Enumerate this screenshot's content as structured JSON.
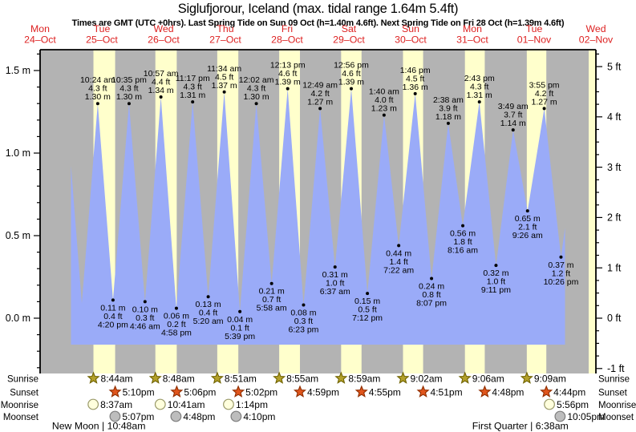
{
  "colors": {
    "night_band": "#b3b3b3",
    "daylight_band": "#ffffcc",
    "water": "#9aabf8",
    "axis": "#000000",
    "day_label": "#dd2222",
    "tide_label": "#000000",
    "sunrise_star_fill": "#b3a02a",
    "sunrise_star_stroke": "#6f6200",
    "sunset_star_fill": "#e0551c",
    "sunset_star_stroke": "#8f2e00",
    "moonrise_fill": "#ffffdd",
    "moonrise_stroke": "#9a9a6a",
    "moonset_fill": "#bdbdbd",
    "moonset_stroke": "#7d7d7d"
  },
  "chart_data": {
    "type": "area",
    "title": "Siglufjorour, Iceland (max. tidal range 1.64m 5.4ft)",
    "subtitle": "Times are GMT (UTC +0hrs). Last Spring Tide on Sun 09 Oct (h=1.40m 4.6ft). Next Spring Tide on Fri 28 Oct (h=1.39m 4.6ft)",
    "x_days": [
      {
        "dow": "Mon",
        "date": "24–Oct"
      },
      {
        "dow": "Tue",
        "date": "25–Oct"
      },
      {
        "dow": "Wed",
        "date": "26–Oct"
      },
      {
        "dow": "Thu",
        "date": "27–Oct"
      },
      {
        "dow": "Fri",
        "date": "28–Oct"
      },
      {
        "dow": "Sat",
        "date": "29–Oct"
      },
      {
        "dow": "Sun",
        "date": "30–Oct"
      },
      {
        "dow": "Mon",
        "date": "31–Oct"
      },
      {
        "dow": "Tue",
        "date": "01–Nov"
      },
      {
        "dow": "Wed",
        "date": "02–Nov"
      }
    ],
    "y_axis_left": {
      "unit": "m",
      "major_ticks": [
        {
          "text": "0.0 m",
          "value": 0.0
        },
        {
          "text": "0.5 m",
          "value": 0.5
        },
        {
          "text": "1.0 m",
          "value": 1.0
        },
        {
          "text": "1.5 m",
          "value": 1.5
        }
      ],
      "minor_step_m": 0.1
    },
    "y_axis_right": {
      "unit": "ft",
      "major_ticks": [
        {
          "text": "-1 ft",
          "value": -1
        },
        {
          "text": "0 ft",
          "value": 0
        },
        {
          "text": "1 ft",
          "value": 1
        },
        {
          "text": "2 ft",
          "value": 2
        },
        {
          "text": "3 ft",
          "value": 3
        },
        {
          "text": "4 ft",
          "value": 4
        },
        {
          "text": "5 ft",
          "value": 5
        }
      ],
      "minor_step_ft": 0.25
    },
    "layout": {
      "time_axis_start_hour": 12,
      "time_axis_end_hour": 228,
      "water_start_hour": 24,
      "water_end_hour": 216,
      "water_base_m": -0.16,
      "ylim_m": [
        -0.335,
        1.625
      ],
      "edge_daylight_band_start_hour": 225.2
    },
    "tide_extremes": [
      {
        "kind": "high",
        "hour": 22.1,
        "height_m": 1.3,
        "labeled": false
      },
      {
        "kind": "low",
        "hour": 28.2,
        "height_m": 0.09,
        "labeled": false
      },
      {
        "kind": "high",
        "hour": 34.4,
        "height_m": 1.3,
        "labeled": true,
        "time": "10:24 am",
        "ft": "4.3 ft",
        "m": "1.30 m"
      },
      {
        "kind": "low",
        "hour": 40.33,
        "height_m": 0.11,
        "labeled": true,
        "time": "4:20 pm",
        "ft": "0.4 ft",
        "m": "0.11 m"
      },
      {
        "kind": "high",
        "hour": 46.58,
        "height_m": 1.3,
        "labeled": true,
        "time": "10:35 pm",
        "ft": "4.3 ft",
        "m": "1.30 m"
      },
      {
        "kind": "low",
        "hour": 52.77,
        "height_m": 0.1,
        "labeled": true,
        "time": "4:46 am",
        "ft": "0.3 ft",
        "m": "0.10 m"
      },
      {
        "kind": "high",
        "hour": 58.95,
        "height_m": 1.34,
        "labeled": true,
        "time": "10:57 am",
        "ft": "4.4 ft",
        "m": "1.34 m"
      },
      {
        "kind": "low",
        "hour": 64.97,
        "height_m": 0.06,
        "labeled": true,
        "time": "4:58 pm",
        "ft": "0.2 ft",
        "m": "0.06 m"
      },
      {
        "kind": "high",
        "hour": 71.28,
        "height_m": 1.31,
        "labeled": true,
        "time": "11:17 pm",
        "ft": "4.3 ft",
        "m": "1.31 m"
      },
      {
        "kind": "low",
        "hour": 77.33,
        "height_m": 0.13,
        "labeled": true,
        "time": "5:20 am",
        "ft": "0.4 ft",
        "m": "0.13 m"
      },
      {
        "kind": "high",
        "hour": 83.57,
        "height_m": 1.37,
        "labeled": true,
        "time": "11:34 am",
        "ft": "4.5 ft",
        "m": "1.37 m"
      },
      {
        "kind": "low",
        "hour": 89.65,
        "height_m": 0.04,
        "labeled": true,
        "time": "5:39 pm",
        "ft": "0.1 ft",
        "m": "0.04 m"
      },
      {
        "kind": "high",
        "hour": 96.03,
        "height_m": 1.3,
        "labeled": true,
        "time": "12:02 am",
        "ft": "4.3 ft",
        "m": "1.30 m"
      },
      {
        "kind": "low",
        "hour": 101.97,
        "height_m": 0.21,
        "labeled": true,
        "time": "5:58 am",
        "ft": "0.7 ft",
        "m": "0.21 m"
      },
      {
        "kind": "high",
        "hour": 108.22,
        "height_m": 1.39,
        "labeled": true,
        "time": "12:13 pm",
        "ft": "4.6 ft",
        "m": "1.39 m"
      },
      {
        "kind": "low",
        "hour": 114.38,
        "height_m": 0.08,
        "labeled": true,
        "time": "6:23 pm",
        "ft": "0.3 ft",
        "m": "0.08 m"
      },
      {
        "kind": "high",
        "hour": 120.82,
        "height_m": 1.27,
        "labeled": true,
        "time": "12:49 am",
        "ft": "4.2 ft",
        "m": "1.27 m"
      },
      {
        "kind": "low",
        "hour": 126.62,
        "height_m": 0.31,
        "labeled": true,
        "time": "6:37 am",
        "ft": "1.0 ft",
        "m": "0.31 m"
      },
      {
        "kind": "high",
        "hour": 132.93,
        "height_m": 1.39,
        "labeled": true,
        "time": "12:56 pm",
        "ft": "4.6 ft",
        "m": "1.39 m"
      },
      {
        "kind": "low",
        "hour": 139.2,
        "height_m": 0.15,
        "labeled": true,
        "time": "7:12 pm",
        "ft": "0.5 ft",
        "m": "0.15 m"
      },
      {
        "kind": "high",
        "hour": 145.67,
        "height_m": 1.23,
        "labeled": true,
        "time": "1:40 am",
        "ft": "4.0 ft",
        "m": "1.23 m"
      },
      {
        "kind": "low",
        "hour": 151.37,
        "height_m": 0.44,
        "labeled": true,
        "time": "7:22 am",
        "ft": "1.4 ft",
        "m": "0.44 m"
      },
      {
        "kind": "high",
        "hour": 157.77,
        "height_m": 1.36,
        "labeled": true,
        "time": "1:46 pm",
        "ft": "4.5 ft",
        "m": "1.36 m"
      },
      {
        "kind": "low",
        "hour": 164.12,
        "height_m": 0.24,
        "labeled": true,
        "time": "8:07 pm",
        "ft": "0.8 ft",
        "m": "0.24 m"
      },
      {
        "kind": "high",
        "hour": 170.63,
        "height_m": 1.18,
        "labeled": true,
        "time": "2:38 am",
        "ft": "3.9 ft",
        "m": "1.18 m"
      },
      {
        "kind": "low",
        "hour": 176.27,
        "height_m": 0.56,
        "labeled": true,
        "time": "8:16 am",
        "ft": "1.8 ft",
        "m": "0.56 m"
      },
      {
        "kind": "high",
        "hour": 182.72,
        "height_m": 1.31,
        "labeled": true,
        "time": "2:43 pm",
        "ft": "4.3 ft",
        "m": "1.31 m"
      },
      {
        "kind": "low",
        "hour": 189.18,
        "height_m": 0.32,
        "labeled": true,
        "time": "9:11 pm",
        "ft": "1.0 ft",
        "m": "0.32 m"
      },
      {
        "kind": "high",
        "hour": 195.82,
        "height_m": 1.14,
        "labeled": true,
        "time": "3:49 am",
        "ft": "3.7 ft",
        "m": "1.14 m"
      },
      {
        "kind": "low",
        "hour": 201.43,
        "height_m": 0.65,
        "labeled": true,
        "time": "9:26 am",
        "ft": "2.1 ft",
        "m": "0.65 m"
      },
      {
        "kind": "high",
        "hour": 207.92,
        "height_m": 1.27,
        "labeled": true,
        "time": "3:55 pm",
        "ft": "4.2 ft",
        "m": "1.27 m"
      },
      {
        "kind": "low",
        "hour": 214.43,
        "height_m": 0.37,
        "labeled": true,
        "time": "10:26 pm",
        "ft": "1.2 ft",
        "m": "0.37 m"
      },
      {
        "kind": "high",
        "hour": 220.9,
        "height_m": 1.1,
        "labeled": false
      }
    ],
    "sun": [
      {
        "day": 1,
        "sunrise": "8:44am",
        "sunset": "5:10pm"
      },
      {
        "day": 2,
        "sunrise": "8:48am",
        "sunset": "5:06pm"
      },
      {
        "day": 3,
        "sunrise": "8:51am",
        "sunset": "5:02pm"
      },
      {
        "day": 4,
        "sunrise": "8:55am",
        "sunset": "4:59pm"
      },
      {
        "day": 5,
        "sunrise": "8:59am",
        "sunset": "4:55pm"
      },
      {
        "day": 6,
        "sunrise": "9:02am",
        "sunset": "4:51pm"
      },
      {
        "day": 7,
        "sunrise": "9:06am",
        "sunset": "4:48pm"
      },
      {
        "day": 8,
        "sunrise": "9:09am",
        "sunset": "4:44pm"
      }
    ],
    "moon": [
      {
        "day": 1,
        "moonrise": "8:37am",
        "moonset": "5:07pm"
      },
      {
        "day": 2,
        "moonrise": "10:41am",
        "moonset": "4:48pm"
      },
      {
        "day": 3,
        "moonrise": "1:14pm",
        "moonset": "4:10pm"
      },
      {
        "day": 8,
        "moonrise": "5:56pm",
        "moonset": "10:05pm"
      }
    ],
    "moon_phases": [
      {
        "text": "New Moon | 10:48am",
        "day": 1,
        "hour": 10.8
      },
      {
        "text": "First Quarter | 6:38am",
        "day": 8,
        "hour": 6.63
      }
    ],
    "row_labels": {
      "sunrise": "Sunrise",
      "sunset": "Sunset",
      "moonrise": "Moonrise",
      "moonset": "Moonset"
    }
  }
}
